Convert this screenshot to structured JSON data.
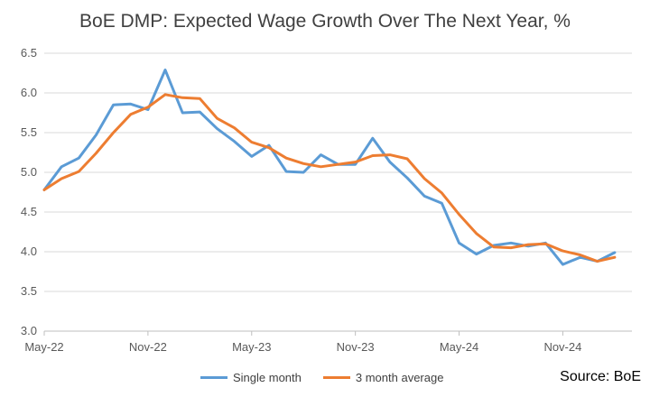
{
  "chart_data": {
    "type": "line",
    "title": "BoE DMP: Expected Wage Growth Over The Next Year, %",
    "xlabel": "",
    "ylabel": "",
    "ylim": [
      3.0,
      6.5
    ],
    "yticks": [
      "3.0",
      "3.5",
      "4.0",
      "4.5",
      "5.0",
      "5.5",
      "6.0",
      "6.5"
    ],
    "ytick_values": [
      3.0,
      3.5,
      4.0,
      4.5,
      5.0,
      5.5,
      6.0,
      6.5
    ],
    "xticks": [
      "May-22",
      "Nov-22",
      "May-23",
      "Nov-23",
      "May-24",
      "Nov-24"
    ],
    "xtick_months": [
      0,
      6,
      12,
      18,
      24,
      30
    ],
    "x_months": [
      0,
      1,
      2,
      3,
      4,
      5,
      6,
      7,
      8,
      9,
      10,
      11,
      12,
      13,
      14,
      15,
      16,
      17,
      18,
      19,
      20,
      21,
      22,
      23,
      24,
      25,
      26,
      27,
      28,
      29,
      30,
      31,
      32,
      33,
      34
    ],
    "series": [
      {
        "name": "Single month",
        "color": "#5B9BD5",
        "values": [
          4.78,
          5.07,
          5.18,
          5.47,
          5.85,
          5.86,
          5.79,
          6.29,
          5.75,
          5.76,
          5.55,
          5.39,
          5.2,
          5.34,
          5.01,
          5.0,
          5.22,
          5.1,
          5.1,
          5.43,
          5.13,
          4.93,
          4.7,
          4.61,
          4.11,
          3.97,
          4.08,
          4.11,
          4.07,
          4.11,
          3.84,
          3.93,
          3.88,
          3.99,
          null
        ]
      },
      {
        "name": "3 month average",
        "color": "#ED7D31",
        "values": [
          4.78,
          4.92,
          5.01,
          5.24,
          5.5,
          5.73,
          5.82,
          5.98,
          5.94,
          5.93,
          5.68,
          5.56,
          5.38,
          5.31,
          5.18,
          5.11,
          5.07,
          5.1,
          5.13,
          5.21,
          5.22,
          5.17,
          4.92,
          4.74,
          4.47,
          4.23,
          4.06,
          4.05,
          4.09,
          4.1,
          4.01,
          3.96,
          3.88,
          3.93,
          null
        ]
      }
    ],
    "legend_position": "bottom-center",
    "grid": true
  },
  "source_note": "Source: BoE"
}
